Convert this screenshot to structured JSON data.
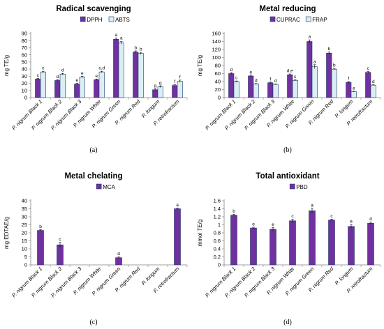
{
  "colors": {
    "purple": "#7030A0",
    "light_blue": "#DAEEF3",
    "bar_stroke": "#1F3864",
    "axis": "#808080"
  },
  "chart_data": [
    {
      "type": "bar",
      "panel_label": "(a)",
      "title": "Radical scavenging",
      "xlabel": "",
      "ylabel": "mg TE/g",
      "ylim": [
        0,
        90
      ],
      "yticks": [
        0,
        10,
        20,
        30,
        40,
        50,
        60,
        70,
        80,
        90
      ],
      "grid": false,
      "legend_position": "top-center",
      "categories": [
        "P. nigrum Black 1",
        "P. nigrum Black 2",
        "P. nigrum Black 3",
        "P. nigrum White",
        "P. nigrum Green",
        "P. nigrum Red",
        "P. longum",
        "P. retrofractum"
      ],
      "series": [
        {
          "name": "DPPH",
          "color": "#7030A0",
          "values": [
            26,
            24,
            19,
            25,
            82,
            64,
            11,
            17
          ],
          "errors": [
            1,
            1,
            1,
            1,
            1.5,
            1.5,
            1,
            1
          ],
          "letters": [
            "c",
            "d",
            "e",
            "e",
            "a",
            "b",
            "g",
            "f"
          ]
        },
        {
          "name": "ABTS",
          "color": "#DAEEF3",
          "values": [
            36,
            33,
            29,
            36,
            77,
            62,
            15,
            23
          ],
          "errors": [
            1,
            1,
            1,
            1,
            2,
            1.5,
            1,
            1.5
          ],
          "letters": [
            "c",
            "d",
            "e",
            "c,d",
            "a",
            "b",
            "g",
            "f"
          ]
        }
      ]
    },
    {
      "type": "bar",
      "panel_label": "(b)",
      "title": "Metal reducing",
      "xlabel": "",
      "ylabel": "mg TE/g",
      "ylim": [
        0,
        160
      ],
      "yticks": [
        0,
        20,
        40,
        60,
        80,
        100,
        120,
        140,
        160
      ],
      "grid": false,
      "legend_position": "top-center",
      "categories": [
        "P. nigrum Black 1",
        "P. nigrum Black 2",
        "P. nigrum Black 3",
        "P. nigrum White",
        "P. nigrum Green",
        "P. nigrum Red",
        "P. longum",
        "P. retrofractum"
      ],
      "series": [
        {
          "name": "CUPRAC",
          "color": "#7030A0",
          "values": [
            60,
            54,
            37,
            57,
            140,
            111,
            38,
            63
          ],
          "errors": [
            2,
            2,
            1.5,
            2,
            4,
            3,
            2,
            2
          ],
          "letters": [
            "d",
            "e",
            "f",
            "d,e",
            "a",
            "b",
            "f",
            "c"
          ]
        },
        {
          "name": "FRAP",
          "color": "#DAEEF3",
          "values": [
            40,
            34,
            33,
            43,
            77,
            71,
            15,
            31
          ],
          "errors": [
            1.5,
            1,
            1,
            1.5,
            5,
            2,
            1,
            1
          ],
          "letters": [
            "c",
            "d",
            "d",
            "c",
            "a",
            "b",
            "e",
            "d"
          ]
        }
      ]
    },
    {
      "type": "bar",
      "panel_label": "(c)",
      "title": "Metal chelating",
      "xlabel": "",
      "ylabel": "mg EDTAE/g",
      "ylim": [
        0,
        40
      ],
      "yticks": [
        0,
        5,
        10,
        15,
        20,
        25,
        30,
        35,
        40
      ],
      "grid": false,
      "legend_position": "top-center",
      "categories": [
        "P. nigrum Black 1",
        "P. nigrum Black 2",
        "P. nigrum Black 3",
        "P. nigrum White",
        "P. nigrum Green",
        "P. nigrum Red",
        "P. longum",
        "P. retrofractum"
      ],
      "series": [
        {
          "name": "MCA",
          "color": "#7030A0",
          "values": [
            21.5,
            12.5,
            null,
            null,
            4.5,
            null,
            null,
            35
          ],
          "errors": [
            0.5,
            1.5,
            null,
            null,
            0.4,
            null,
            null,
            0.4
          ],
          "letters": [
            "b",
            "c",
            "",
            "",
            "d",
            "",
            "",
            "a"
          ]
        }
      ]
    },
    {
      "type": "bar",
      "panel_label": "(d)",
      "title": "Total antioxidant",
      "xlabel": "",
      "ylabel": "mmol TE/g",
      "ylim": [
        0,
        1.6
      ],
      "yticks": [
        0,
        0.2,
        0.4,
        0.6,
        0.8,
        1,
        1.2,
        1.4,
        1.6
      ],
      "grid": false,
      "legend_position": "top-center",
      "categories": [
        "P. nigrum Black 1",
        "P. nigrum Black 2",
        "P. nigrum Black 3",
        "P. nigrum White",
        "P. nigrum Green",
        "P. nigrum Red",
        "P. longum",
        "P. retrofractum"
      ],
      "series": [
        {
          "name": "PBD",
          "color": "#7030A0",
          "values": [
            1.24,
            0.92,
            0.89,
            1.1,
            1.35,
            1.12,
            0.96,
            1.04
          ],
          "errors": [
            0.02,
            0.02,
            0.04,
            0.04,
            0.06,
            0.02,
            0.05,
            0.03
          ],
          "letters": [
            "b",
            "e",
            "e",
            "c",
            "a",
            "c",
            "e",
            "d"
          ]
        }
      ]
    }
  ]
}
